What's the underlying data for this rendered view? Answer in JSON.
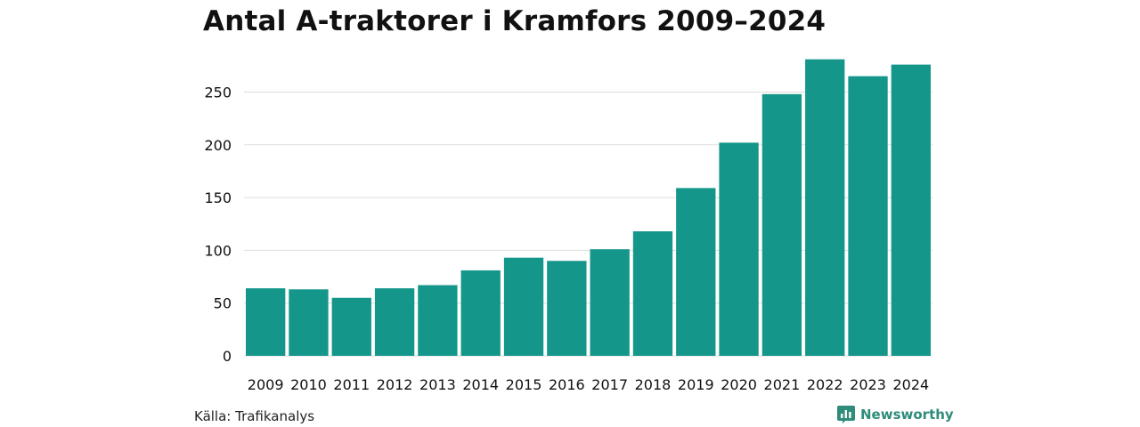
{
  "title": "Antal A-traktorer i Kramfors 2009–2024",
  "source": "Källa: Trafikanalys",
  "brand": {
    "name": "Newsworthy",
    "icon": "newsworthy-logo-icon"
  },
  "colors": {
    "bar": "#14968a",
    "brand": "#2f8c7a",
    "grid": "#dddddd"
  },
  "chart_data": {
    "type": "bar",
    "title": "Antal A-traktorer i Kramfors 2009–2024",
    "xlabel": "",
    "ylabel": "",
    "categories": [
      "2009",
      "2010",
      "2011",
      "2012",
      "2013",
      "2014",
      "2015",
      "2016",
      "2017",
      "2018",
      "2019",
      "2020",
      "2021",
      "2022",
      "2023",
      "2024"
    ],
    "values": [
      64,
      63,
      55,
      64,
      67,
      81,
      93,
      90,
      101,
      118,
      159,
      202,
      248,
      281,
      265,
      276
    ],
    "ylim": [
      0,
      290
    ],
    "yticks": [
      0,
      50,
      100,
      150,
      200,
      250
    ],
    "grid": true
  }
}
